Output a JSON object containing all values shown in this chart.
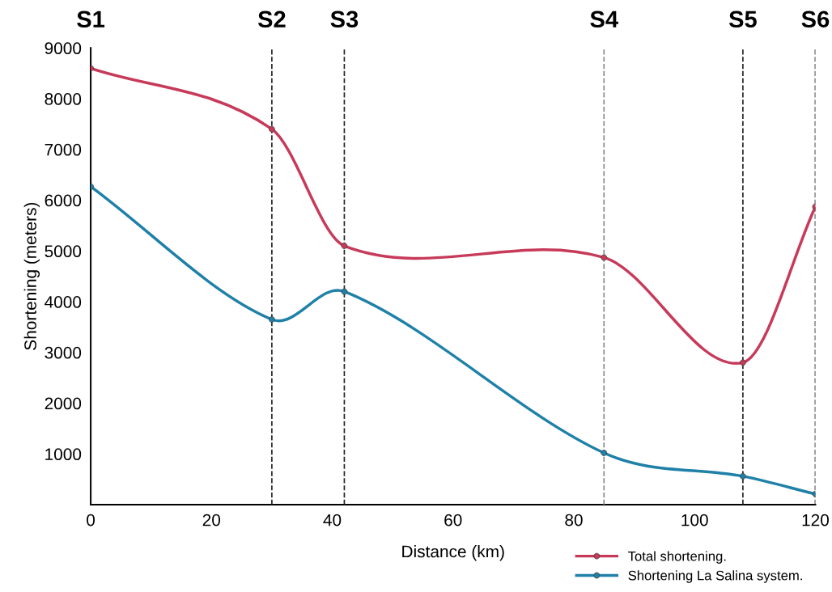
{
  "chart_data": {
    "type": "line",
    "xlabel": "Distance (km)",
    "ylabel": "Shortening (meters)",
    "x": [
      0,
      30,
      42,
      85,
      108,
      120
    ],
    "series": [
      {
        "name": "Total shortening.",
        "color": "#c73a5a",
        "values": [
          8600,
          7400,
          5100,
          4870,
          2800,
          5870
        ]
      },
      {
        "name": "Shortening La Salina system.",
        "color": "#1f80a8",
        "values": [
          6270,
          3650,
          4200,
          1020,
          560,
          210
        ]
      }
    ],
    "xlim": [
      0,
      120
    ],
    "xticks": [
      0,
      20,
      40,
      60,
      80,
      100,
      120
    ],
    "ylim": [
      0,
      9000
    ],
    "yticks": [
      1000,
      2000,
      3000,
      4000,
      5000,
      6000,
      7000,
      8000,
      9000
    ],
    "ref_lines": [
      {
        "axis": "x",
        "value": 0,
        "label": "S1",
        "color": "#222222",
        "line_style": "solid"
      },
      {
        "axis": "x",
        "value": 30,
        "label": "S2",
        "color": "#222222",
        "line_style": "dashed"
      },
      {
        "axis": "x",
        "value": 42,
        "label": "S3",
        "color": "#222222",
        "line_style": "dashed"
      },
      {
        "axis": "x",
        "value": 85,
        "label": "S4",
        "color": "#888888",
        "line_style": "dashed"
      },
      {
        "axis": "x",
        "value": 108,
        "label": "S5",
        "color": "#222222",
        "line_style": "dashed"
      },
      {
        "axis": "x",
        "value": 120,
        "label": "S6",
        "color": "#222222",
        "line_style": "dashed"
      }
    ],
    "marker": "circle",
    "line_style": "solid",
    "grid": false,
    "legend": "bottom right"
  }
}
